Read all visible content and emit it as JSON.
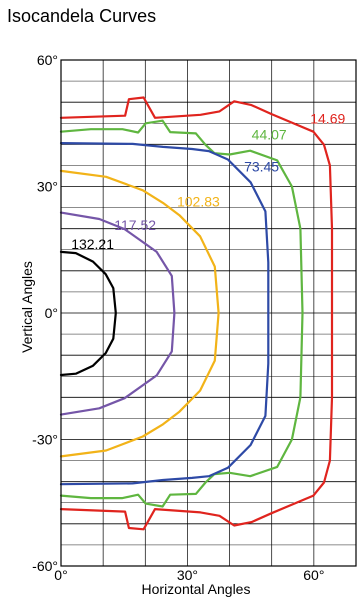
{
  "chart_data": {
    "type": "line",
    "title": "Isocandela Curves",
    "xlabel": "Horizontal Angles",
    "ylabel": "Vertical Angles",
    "xlim": [
      0,
      70
    ],
    "ylim": [
      -60,
      60
    ],
    "xticks": [
      {
        "v": 0,
        "label": "0°"
      },
      {
        "v": 30,
        "label": "30°"
      },
      {
        "v": 60,
        "label": "60°"
      }
    ],
    "yticks": [
      {
        "v": 60,
        "label": "60°"
      },
      {
        "v": 30,
        "label": "30°"
      },
      {
        "v": 0,
        "label": "0°"
      },
      {
        "v": -30,
        "label": "-30°"
      },
      {
        "v": -60,
        "label": "-60°"
      }
    ],
    "grid": true,
    "series": [
      {
        "name": "14.69",
        "color": "#e0241e",
        "label_at": [
          63.3,
          45.0
        ],
        "points": [
          [
            0,
            46.3
          ],
          [
            15.2,
            46.8
          ],
          [
            16.1,
            50.7
          ],
          [
            19.6,
            51.1
          ],
          [
            22.3,
            46.3
          ],
          [
            33.1,
            47.0
          ],
          [
            37.6,
            47.8
          ],
          [
            41.1,
            50.2
          ],
          [
            45.2,
            49.3
          ],
          [
            49.9,
            47.2
          ],
          [
            59.9,
            43.0
          ],
          [
            62.4,
            39.9
          ],
          [
            63.8,
            35.0
          ],
          [
            64.3,
            20.0
          ],
          [
            64.3,
            0
          ],
          [
            64.3,
            -20.0
          ],
          [
            63.8,
            -35.0
          ],
          [
            62.4,
            -40.2
          ],
          [
            59.9,
            -43.3
          ],
          [
            49.9,
            -47.5
          ],
          [
            45.2,
            -49.6
          ],
          [
            41.1,
            -50.4
          ],
          [
            37.6,
            -48.1
          ],
          [
            33.1,
            -47.3
          ],
          [
            22.3,
            -46.5
          ],
          [
            19.6,
            -51.3
          ],
          [
            16.1,
            -51.0
          ],
          [
            15.2,
            -47.1
          ],
          [
            0,
            -46.5
          ]
        ]
      },
      {
        "name": "44.07",
        "color": "#5fb640",
        "label_at": [
          49.4,
          41.2
        ],
        "points": [
          [
            0,
            43.0
          ],
          [
            7.1,
            43.6
          ],
          [
            14.6,
            43.6
          ],
          [
            18.3,
            42.8
          ],
          [
            20.1,
            45.0
          ],
          [
            24.1,
            45.6
          ],
          [
            25.9,
            42.9
          ],
          [
            32.0,
            42.6
          ],
          [
            34.3,
            39.9
          ],
          [
            36.4,
            37.9
          ],
          [
            40.0,
            37.6
          ],
          [
            44.9,
            38.5
          ],
          [
            51.3,
            36.2
          ],
          [
            54.8,
            30.0
          ],
          [
            56.8,
            20.0
          ],
          [
            57.3,
            0
          ],
          [
            56.8,
            -20.0
          ],
          [
            54.8,
            -30.0
          ],
          [
            51.3,
            -36.5
          ],
          [
            44.9,
            -38.7
          ],
          [
            40.0,
            -37.9
          ],
          [
            36.4,
            -38.2
          ],
          [
            34.3,
            -40.2
          ],
          [
            32.0,
            -42.9
          ],
          [
            25.9,
            -43.1
          ],
          [
            24.1,
            -45.9
          ],
          [
            20.1,
            -45.2
          ],
          [
            18.3,
            -43.1
          ],
          [
            14.6,
            -43.9
          ],
          [
            7.1,
            -43.9
          ],
          [
            0,
            -43.3
          ]
        ]
      },
      {
        "name": "73.45",
        "color": "#2e4aa6",
        "label_at": [
          47.6,
          33.6
        ],
        "points": [
          [
            0,
            40.3
          ],
          [
            17.0,
            40.1
          ],
          [
            24.2,
            39.4
          ],
          [
            31.1,
            38.9
          ],
          [
            35.1,
            38.4
          ],
          [
            39.6,
            36.4
          ],
          [
            45.0,
            31.0
          ],
          [
            48.5,
            24.1
          ],
          [
            49.2,
            12.0
          ],
          [
            49.2,
            0
          ],
          [
            49.2,
            -12.0
          ],
          [
            48.5,
            -24.4
          ],
          [
            45.0,
            -31.3
          ],
          [
            39.6,
            -36.7
          ],
          [
            35.1,
            -38.7
          ],
          [
            31.1,
            -39.1
          ],
          [
            24.2,
            -39.6
          ],
          [
            17.0,
            -40.4
          ],
          [
            0,
            -40.6
          ]
        ]
      },
      {
        "name": "102.83",
        "color": "#f2b318",
        "label_at": [
          32.6,
          25.3
        ],
        "points": [
          [
            0,
            33.7
          ],
          [
            10.7,
            32.3
          ],
          [
            19.4,
            29.1
          ],
          [
            24.2,
            26.1
          ],
          [
            28.1,
            23.2
          ],
          [
            33.0,
            18.2
          ],
          [
            36.5,
            11.0
          ],
          [
            37.4,
            0
          ],
          [
            36.5,
            -11.3
          ],
          [
            33.0,
            -18.4
          ],
          [
            28.1,
            -23.4
          ],
          [
            24.2,
            -26.4
          ],
          [
            19.4,
            -29.3
          ],
          [
            10.7,
            -32.6
          ],
          [
            0,
            -34.0
          ]
        ]
      },
      {
        "name": "117.52",
        "color": "#7556a8",
        "label_at": [
          17.6,
          19.7
        ],
        "points": [
          [
            0,
            23.8
          ],
          [
            9.1,
            22.3
          ],
          [
            15.1,
            19.9
          ],
          [
            22.7,
            14.5
          ],
          [
            26.3,
            8.8
          ],
          [
            26.9,
            0
          ],
          [
            26.3,
            -9.1
          ],
          [
            22.7,
            -14.8
          ],
          [
            15.1,
            -20.2
          ],
          [
            9.1,
            -22.6
          ],
          [
            0,
            -24.1
          ]
        ]
      },
      {
        "name": "132.21",
        "color": "#000000",
        "label_at": [
          7.5,
          15.2
        ],
        "points": [
          [
            0,
            14.5
          ],
          [
            3.5,
            14.2
          ],
          [
            7.6,
            12.2
          ],
          [
            10.6,
            9.2
          ],
          [
            12.4,
            5.9
          ],
          [
            13.0,
            0
          ],
          [
            12.4,
            -6.1
          ],
          [
            10.6,
            -9.5
          ],
          [
            7.6,
            -12.5
          ],
          [
            3.5,
            -14.4
          ],
          [
            0,
            -14.7
          ]
        ]
      }
    ]
  }
}
